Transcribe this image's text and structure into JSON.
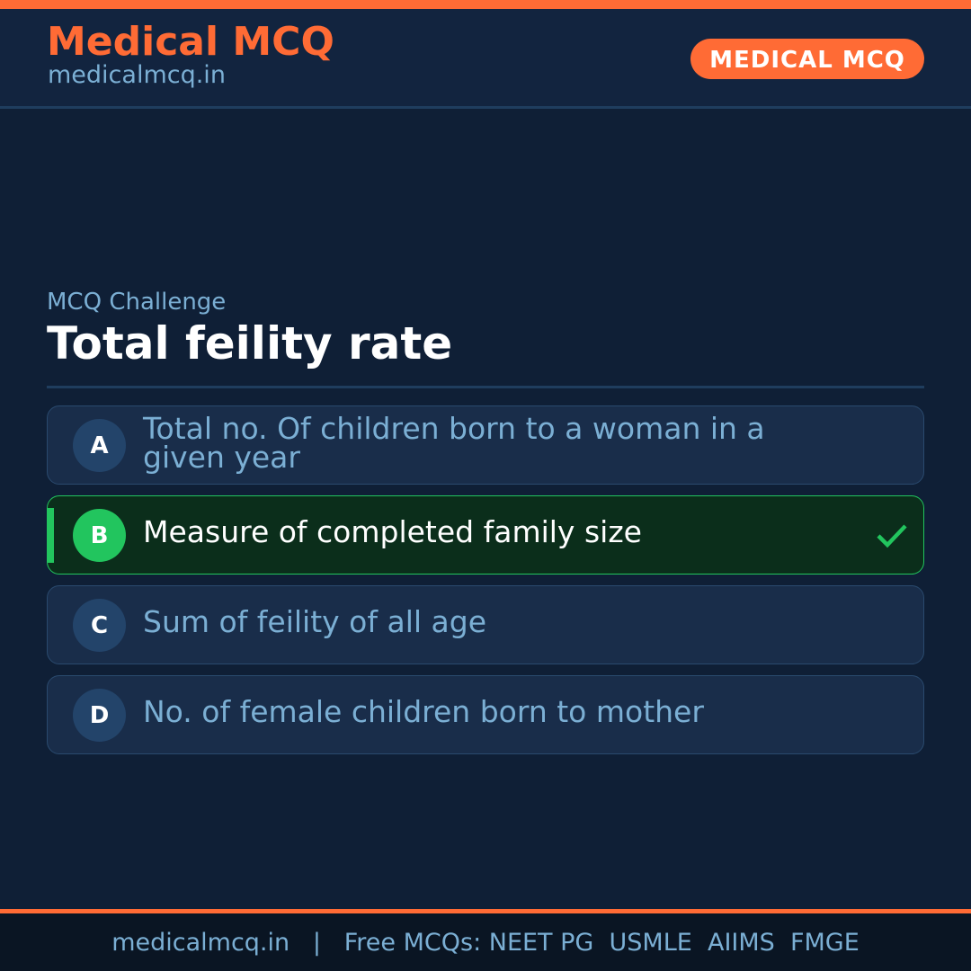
{
  "header": {
    "brand_title": "Medical MCQ",
    "brand_url": "medicalmcq.in",
    "badge": "MEDICAL MCQ"
  },
  "question": {
    "subtitle": "MCQ Challenge",
    "title": "Total feility rate"
  },
  "options": [
    {
      "letter": "A",
      "text": "Total no. Of children born to a woman in a given year",
      "correct": false
    },
    {
      "letter": "B",
      "text": "Measure of completed family size",
      "correct": true,
      "icon": "check-icon"
    },
    {
      "letter": "C",
      "text": "Sum of feility of all age",
      "correct": false
    },
    {
      "letter": "D",
      "text": "No. of female children born to mother",
      "correct": false
    }
  ],
  "footer": {
    "text": "medicalmcq.in   |   Free MCQs: NEET PG  USMLE  AIIMS  FMGE"
  },
  "colors": {
    "accent": "#ff6b35",
    "background": "#0f1f36",
    "header_bg": "#12243f",
    "correct": "#22c55e",
    "muted_text": "#7bafd4"
  }
}
